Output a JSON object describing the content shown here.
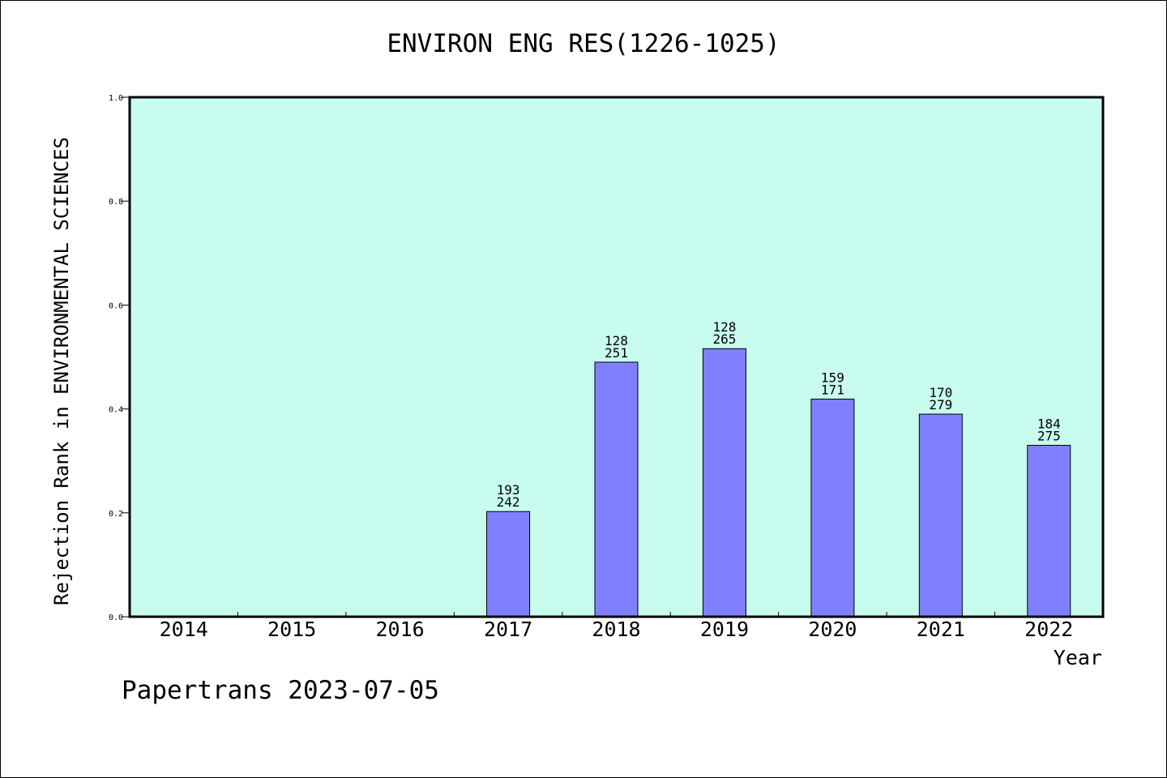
{
  "chart_data": {
    "type": "bar",
    "title": "ENVIRON ENG RES(1226-1025)",
    "xlabel": "Year",
    "ylabel": "Rejection Rank in ENVIRONMENTAL SCIENCES",
    "categories": [
      "2014",
      "2015",
      "2016",
      "2017",
      "2018",
      "2019",
      "2020",
      "2021",
      "2022"
    ],
    "values": [
      null,
      null,
      null,
      0.2025,
      0.49,
      0.516,
      0.419,
      0.39,
      0.33
    ],
    "bar_labels": [
      null,
      null,
      null,
      [
        "193",
        "242"
      ],
      [
        "128",
        "251"
      ],
      [
        "128",
        "265"
      ],
      [
        "159",
        "171"
      ],
      [
        "170",
        "279"
      ],
      [
        "184",
        "275"
      ]
    ],
    "ylim": [
      0,
      1.0
    ],
    "yticks": [
      "0.0",
      "0.2",
      "0.4",
      "0.6",
      "0.8",
      "1.0"
    ],
    "grid": false,
    "colors": {
      "plot_background": "#c8fcee",
      "bar_fill": "#8080ff",
      "bar_stroke": "#000000"
    }
  },
  "footer": {
    "credit": "Papertrans 2023-07-05"
  }
}
